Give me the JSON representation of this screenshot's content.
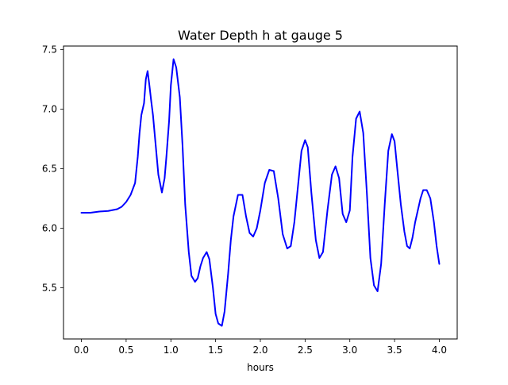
{
  "chart_data": {
    "type": "line",
    "title": "Water Depth h at gauge 5",
    "xlabel": "hours",
    "ylabel": "",
    "xlim": [
      -0.2,
      4.2
    ],
    "ylim": [
      5.07,
      7.53
    ],
    "x_ticks": [
      0.0,
      0.5,
      1.0,
      1.5,
      2.0,
      2.5,
      3.0,
      3.5,
      4.0
    ],
    "x_tick_labels": [
      "0.0",
      "0.5",
      "1.0",
      "1.5",
      "2.0",
      "2.5",
      "3.0",
      "3.5",
      "4.0"
    ],
    "y_ticks": [
      5.5,
      6.0,
      6.5,
      7.0,
      7.5
    ],
    "y_tick_labels": [
      "5.5",
      "6.0",
      "6.5",
      "7.0",
      "7.5"
    ],
    "grid": false,
    "legend": "none",
    "series": [
      {
        "color": "#0000ff",
        "x": [
          0.0,
          0.1,
          0.2,
          0.3,
          0.4,
          0.45,
          0.5,
          0.55,
          0.6,
          0.63,
          0.65,
          0.67,
          0.7,
          0.72,
          0.74,
          0.76,
          0.78,
          0.8,
          0.83,
          0.86,
          0.9,
          0.93,
          0.95,
          0.98,
          1.0,
          1.03,
          1.06,
          1.1,
          1.13,
          1.16,
          1.2,
          1.23,
          1.27,
          1.3,
          1.33,
          1.36,
          1.4,
          1.43,
          1.47,
          1.5,
          1.53,
          1.57,
          1.6,
          1.64,
          1.67,
          1.7,
          1.75,
          1.8,
          1.84,
          1.88,
          1.92,
          1.96,
          2.0,
          2.05,
          2.1,
          2.15,
          2.2,
          2.25,
          2.3,
          2.34,
          2.38,
          2.42,
          2.46,
          2.5,
          2.53,
          2.57,
          2.62,
          2.66,
          2.7,
          2.75,
          2.8,
          2.84,
          2.88,
          2.92,
          2.96,
          3.0,
          3.03,
          3.07,
          3.11,
          3.15,
          3.19,
          3.23,
          3.27,
          3.31,
          3.35,
          3.39,
          3.43,
          3.47,
          3.5,
          3.53,
          3.57,
          3.61,
          3.64,
          3.67,
          3.7,
          3.73,
          3.76,
          3.79,
          3.82,
          3.86,
          3.9,
          3.94,
          3.97,
          4.0
        ],
        "y": [
          6.13,
          6.13,
          6.14,
          6.145,
          6.16,
          6.18,
          6.22,
          6.28,
          6.38,
          6.6,
          6.8,
          6.95,
          7.05,
          7.25,
          7.32,
          7.2,
          7.07,
          6.95,
          6.7,
          6.45,
          6.3,
          6.42,
          6.6,
          6.9,
          7.2,
          7.42,
          7.35,
          7.1,
          6.7,
          6.2,
          5.8,
          5.6,
          5.55,
          5.58,
          5.68,
          5.75,
          5.8,
          5.74,
          5.5,
          5.28,
          5.2,
          5.18,
          5.3,
          5.62,
          5.9,
          6.1,
          6.28,
          6.28,
          6.1,
          5.96,
          5.93,
          6.0,
          6.15,
          6.38,
          6.49,
          6.48,
          6.25,
          5.95,
          5.83,
          5.85,
          6.05,
          6.35,
          6.65,
          6.74,
          6.68,
          6.3,
          5.9,
          5.75,
          5.8,
          6.15,
          6.45,
          6.52,
          6.42,
          6.12,
          6.05,
          6.15,
          6.6,
          6.92,
          6.98,
          6.8,
          6.3,
          5.75,
          5.52,
          5.47,
          5.7,
          6.2,
          6.65,
          6.79,
          6.73,
          6.5,
          6.2,
          5.97,
          5.85,
          5.83,
          5.92,
          6.05,
          6.15,
          6.25,
          6.32,
          6.32,
          6.25,
          6.05,
          5.85,
          5.7
        ]
      }
    ]
  }
}
